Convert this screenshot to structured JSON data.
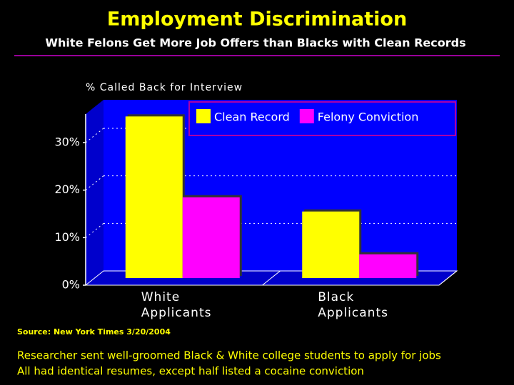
{
  "chart_data": {
    "type": "bar",
    "title": "Employment Discrimination",
    "subtitle": "White Felons Get More Job Offers than Blacks with Clean Records",
    "y_label": "% Called Back for Interview",
    "categories": [
      "White Applicants",
      "Black Applicants"
    ],
    "series": [
      {
        "name": "Clean Record",
        "color": "#ffff00",
        "values": [
          34,
          14
        ]
      },
      {
        "name": "Felony Conviction",
        "color": "#ff00ff",
        "values": [
          17,
          5
        ]
      }
    ],
    "ylim": [
      0,
      36
    ],
    "yticks": [
      {
        "value": 0,
        "label": "0%"
      },
      {
        "value": 10,
        "label": "10%"
      },
      {
        "value": 20,
        "label": "20%"
      },
      {
        "value": 30,
        "label": "30%"
      }
    ],
    "grid": true,
    "legend": "top-right",
    "source": "Source: New York Times 3/20/2004",
    "notes": [
      "Researcher sent well-groomed Black & White college students to apply for jobs",
      "All had identical resumes, except half listed a cocaine conviction"
    ]
  }
}
